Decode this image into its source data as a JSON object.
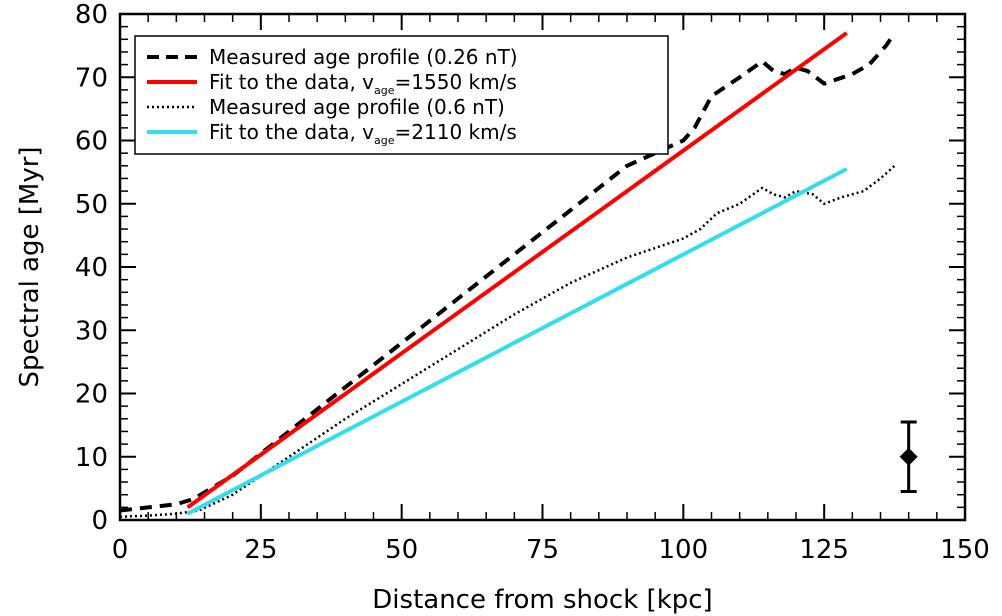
{
  "chart_data": {
    "type": "line",
    "xlabel": "Distance from shock [kpc]",
    "ylabel": "Spectral age [Myr]",
    "xlim": [
      0,
      150
    ],
    "ylim": [
      0,
      80
    ],
    "xticks": [
      0,
      25,
      50,
      75,
      100,
      125,
      150
    ],
    "yticks": [
      0,
      10,
      20,
      30,
      40,
      50,
      60,
      70,
      80
    ],
    "grid": false,
    "legend_position": "top-left",
    "series": [
      {
        "name": "Measured age profile (0.26 nT)",
        "legend_text": "Measured age profile (0.26 nT)",
        "style": "dashed",
        "color": "#000000",
        "x": [
          0,
          5,
          10,
          13,
          20,
          30,
          40,
          50,
          60,
          70,
          80,
          90,
          100,
          102,
          105,
          110,
          114,
          116,
          118,
          120,
          122,
          125,
          130,
          133,
          136,
          137.5
        ],
        "y": [
          1.5,
          2,
          2.5,
          3.3,
          7,
          14,
          21,
          28,
          35,
          42,
          49,
          56,
          60,
          62,
          67,
          70,
          72.5,
          71,
          70.5,
          71.5,
          71,
          69,
          70.5,
          72,
          75,
          77
        ]
      },
      {
        "name": "Fit to the data, v_age=1550 km/s",
        "legend_text": "Fit to the data, v",
        "legend_subscript": "age",
        "legend_tail": "=1550 km/s",
        "style": "solid",
        "color": "#ff0000",
        "x": [
          12,
          129
        ],
        "y": [
          2,
          77
        ]
      },
      {
        "name": "Measured age profile (0.6 nT)",
        "legend_text": "Measured age profile (0.6 nT)",
        "style": "dotted",
        "color": "#000000",
        "x": [
          0,
          5,
          10,
          14,
          20,
          30,
          40,
          50,
          60,
          70,
          80,
          90,
          100,
          103,
          106,
          110,
          114,
          116,
          118,
          120,
          123,
          125,
          128,
          132,
          135,
          137.5
        ],
        "y": [
          0.5,
          0.7,
          1,
          1.5,
          4,
          10,
          16,
          21.5,
          27,
          32.5,
          37.5,
          41.5,
          44.5,
          46,
          48.5,
          50,
          52.5,
          51.5,
          51,
          52,
          51.5,
          50,
          51,
          52,
          54,
          56
        ]
      },
      {
        "name": "Fit to the data, v_age=2110 km/s",
        "legend_text": "Fit to the data, v",
        "legend_subscript": "age",
        "legend_tail": "=2110 km/s",
        "style": "solid",
        "color": "#33ddee",
        "x": [
          12,
          129
        ],
        "y": [
          1,
          55.5
        ]
      }
    ],
    "error_bar": {
      "x": 140,
      "y": 10,
      "ylow": 4.5,
      "yhigh": 15.5
    }
  }
}
